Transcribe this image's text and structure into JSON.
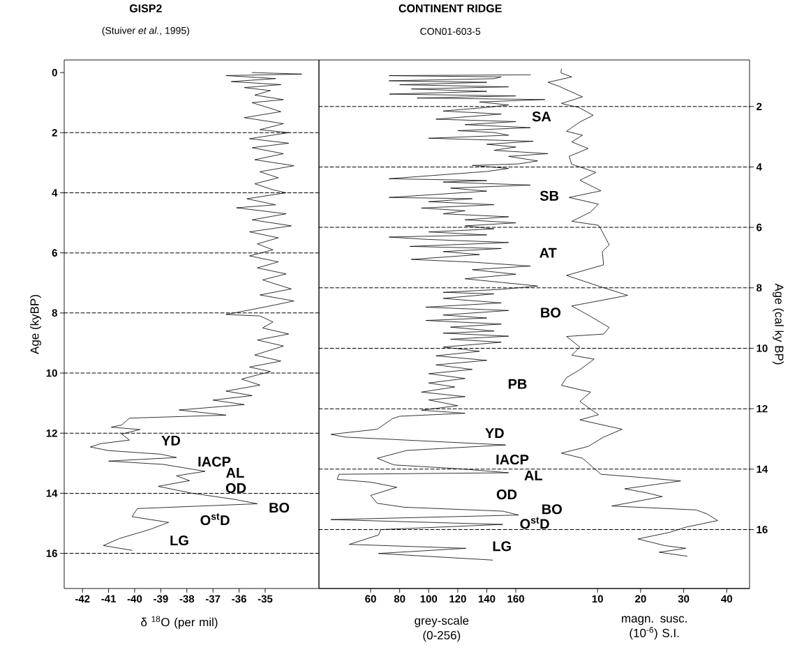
{
  "chart_data": [
    {
      "type": "line",
      "title": "GISP2",
      "subtitle": "(Stuiver *et al.*, 1995)",
      "xlabel": "δ $^{18}$O (per mil)",
      "ylabel": "Age (kyBP)",
      "xlim": [
        -42.7,
        -32.94
      ],
      "xticks": [
        -42,
        -41,
        -40,
        -39,
        -38,
        -37,
        -36,
        -35
      ],
      "ylim": [
        17.17,
        -0.42
      ],
      "yticks": [
        0,
        2,
        4,
        6,
        8,
        10,
        12,
        14,
        16
      ],
      "ref_lines": [
        {
          "axis": "y",
          "value": 2,
          "line_style": "dashed"
        },
        {
          "axis": "y",
          "value": 4,
          "line_style": "dashed"
        },
        {
          "axis": "y",
          "value": 6,
          "line_style": "dashed"
        },
        {
          "axis": "y",
          "value": 8,
          "line_style": "dashed"
        },
        {
          "axis": "y",
          "value": 10,
          "line_style": "dashed"
        },
        {
          "axis": "y",
          "value": 12,
          "line_style": "dashed"
        },
        {
          "axis": "y",
          "value": 14,
          "line_style": "dashed"
        },
        {
          "axis": "y",
          "value": 16,
          "line_style": "dashed"
        }
      ],
      "annotations": [
        "YD",
        "IACP",
        "AL",
        "OD",
        "BO",
        "O$^{st}$D",
        "LG"
      ],
      "series": [
        {
          "color": "#000000",
          "x": [
            -35.5,
            -33.6,
            -36.5,
            -34.6,
            -36.3,
            -34.4,
            -35.8,
            -34.8,
            -35.4,
            -34.3,
            -35.5,
            -34.4,
            -35.8,
            -34.3,
            -35.2,
            -34.1,
            -35.6,
            -34.1,
            -35.5,
            -34.3,
            -35.4,
            -33.9,
            -35.2,
            -34.5,
            -35.4,
            -34.7,
            -34.2,
            -35.7,
            -34.6,
            -36.1,
            -34.2,
            -35.5,
            -34.0,
            -35.6,
            -34.5,
            -35.3,
            -34.7,
            -35.6,
            -34.5,
            -35.3,
            -34.2,
            -35.1,
            -34.0,
            -35.2,
            -33.9,
            -35.0,
            -36.5,
            -35.2,
            -34.7,
            -35.1,
            -34.1,
            -35.3,
            -34.3,
            -35.4,
            -34.4,
            -35.6,
            -34.8,
            -35.9,
            -35.2,
            -36.5,
            -35.5,
            -37.0,
            -35.8,
            -38.3,
            -36.5,
            -40.2,
            -40.5,
            -40.9,
            -39.8,
            -40.5,
            -40.2,
            -41.3,
            -41.7,
            -41.0,
            -39.0,
            -38.4,
            -41.0,
            -38.9,
            -37.3,
            -38.4,
            -37.9,
            -39.1,
            -37.8,
            -36.2,
            -35.3,
            -39.9,
            -40.1,
            -38.7,
            -39.4,
            -40.6,
            -41.2,
            -40.1
          ],
          "values": [
            0.0,
            0.05,
            0.1,
            0.2,
            0.3,
            0.4,
            0.5,
            0.6,
            0.75,
            0.9,
            1.0,
            1.3,
            1.5,
            1.7,
            1.9,
            2.0,
            2.2,
            2.35,
            2.5,
            2.7,
            2.9,
            3.1,
            3.3,
            3.5,
            3.7,
            3.9,
            4.0,
            4.2,
            4.4,
            4.5,
            4.7,
            4.9,
            5.1,
            5.3,
            5.5,
            5.7,
            5.9,
            6.1,
            6.3,
            6.5,
            6.7,
            6.9,
            7.2,
            7.4,
            7.6,
            7.8,
            8.05,
            8.1,
            8.3,
            8.5,
            8.7,
            8.9,
            9.1,
            9.4,
            9.6,
            9.8,
            9.95,
            10.2,
            10.4,
            10.6,
            10.75,
            10.9,
            11.05,
            11.23,
            11.4,
            11.5,
            11.73,
            11.8,
            11.88,
            12.03,
            12.23,
            12.35,
            12.46,
            12.58,
            12.7,
            12.81,
            12.93,
            13.04,
            13.27,
            13.42,
            13.58,
            13.77,
            14.0,
            14.2,
            14.35,
            14.51,
            14.78,
            14.97,
            15.2,
            15.51,
            15.74,
            15.9
          ]
        }
      ]
    },
    {
      "type": "line",
      "title": "CONTINENT RIDGE",
      "subtitle": "CON01-603-5",
      "xlabel": "grey-scale (0-256)",
      "x2label": "magn. susc. (10$^{-6}$) S.I.",
      "ylabel": "Age (cal ky BP)",
      "xlim": [
        24.4,
        321
      ],
      "xticks": [
        60,
        80,
        100,
        120,
        140,
        160
      ],
      "x2lim": [
        -54.7,
        45.3
      ],
      "x2ticks": [
        10,
        20,
        30,
        40
      ],
      "ylim": [
        17.95,
        0.46
      ],
      "yticks": [
        2,
        4,
        6,
        8,
        10,
        12,
        14,
        16
      ],
      "ref_lines": [
        {
          "axis": "y",
          "value": 2,
          "line_style": "dashed"
        },
        {
          "axis": "y",
          "value": 4,
          "line_style": "dashed"
        },
        {
          "axis": "y",
          "value": 6,
          "line_style": "dashed"
        },
        {
          "axis": "y",
          "value": 8,
          "line_style": "dashed"
        },
        {
          "axis": "y",
          "value": 10,
          "line_style": "dashed"
        },
        {
          "axis": "y",
          "value": 12,
          "line_style": "dashed"
        },
        {
          "axis": "y",
          "value": 14,
          "line_style": "dashed"
        },
        {
          "axis": "y",
          "value": 16,
          "line_style": "dashed"
        }
      ],
      "annotations": [
        "SA",
        "SB",
        "AT",
        "BO",
        "PB",
        "YD",
        "IACP",
        "AL",
        "OD",
        "BO",
        "O$^{st}$D",
        "LG"
      ],
      "series": [
        {
          "color": "#000000",
          "x": [
            170,
            72.7,
            150,
            145,
            72.7,
            140,
            80,
            155,
            88,
            140,
            73,
            160,
            92,
            180,
            135,
            155,
            140,
            110,
            150,
            105,
            160,
            125,
            170,
            120,
            145,
            155,
            100,
            172,
            140,
            160,
            145,
            182,
            155,
            175,
            162,
            130,
            155,
            140,
            72.7,
            140,
            110,
            170,
            115,
            140,
            72.7,
            130,
            100,
            145,
            95,
            125,
            110,
            155,
            125,
            160,
            125,
            145,
            100,
            140,
            72.7,
            100,
            155,
            87,
            150,
            110,
            135,
            88,
            130,
            170,
            130,
            160,
            125,
            175,
            150,
            110,
            145,
            110,
            150,
            98,
            155,
            110,
            140,
            98,
            150,
            115,
            145,
            110,
            155,
            115,
            150,
            110,
            135,
            105,
            140,
            105,
            130,
            100,
            125,
            100,
            118,
            95,
            125,
            100,
            120,
            95,
            125,
            80,
            75,
            64.5,
            32.6,
            42.6,
            153,
            85,
            64.5,
            76,
            122,
            155,
            38.1,
            37,
            60,
            78,
            60,
            64.5,
            83,
            151,
            162,
            32.6,
            151,
            67,
            65.4,
            45.3,
            125.6,
            65.4,
            144
          ],
          "values": [
            0.95,
            0.98,
            1.02,
            1.08,
            1.15,
            1.2,
            1.28,
            1.35,
            1.42,
            1.5,
            1.59,
            1.65,
            1.72,
            1.77,
            1.85,
            1.95,
            2.03,
            2.15,
            2.25,
            2.42,
            2.5,
            2.6,
            2.7,
            2.8,
            2.86,
            2.95,
            3.05,
            3.15,
            3.25,
            3.34,
            3.45,
            3.56,
            3.65,
            3.8,
            3.9,
            3.95,
            4.05,
            4.15,
            4.39,
            4.45,
            4.5,
            4.6,
            4.7,
            4.8,
            5.01,
            5.05,
            5.15,
            5.25,
            5.36,
            5.45,
            5.55,
            5.65,
            5.75,
            5.85,
            5.95,
            6.05,
            6.15,
            6.25,
            6.32,
            6.4,
            6.5,
            6.63,
            6.7,
            6.8,
            6.9,
            7.06,
            7.15,
            7.28,
            7.4,
            7.55,
            7.7,
            7.94,
            8.05,
            8.15,
            8.2,
            8.35,
            8.5,
            8.64,
            8.75,
            8.9,
            9.0,
            9.08,
            9.2,
            9.3,
            9.43,
            9.5,
            9.6,
            9.7,
            9.8,
            9.96,
            10.1,
            10.25,
            10.4,
            10.55,
            10.7,
            10.84,
            11.0,
            11.15,
            11.28,
            11.45,
            11.6,
            11.71,
            11.9,
            12.05,
            12.15,
            12.25,
            12.33,
            12.68,
            12.85,
            12.94,
            13.2,
            13.38,
            13.64,
            13.86,
            13.99,
            14.12,
            14.17,
            14.34,
            14.43,
            14.6,
            14.87,
            15.13,
            15.26,
            15.39,
            15.52,
            15.67,
            15.83,
            16.0,
            16.18,
            16.49,
            16.62,
            16.79,
            17.01
          ]
        },
        {
          "color": "#000000",
          "axis": "x2",
          "x": [
            1.6,
            1.5,
            4.0,
            -1.5,
            1.0,
            6.5,
            1.6,
            5.6,
            9.0,
            5.9,
            2.8,
            6.5,
            4.0,
            7.8,
            3.4,
            4.0,
            9.6,
            5.9,
            10.8,
            3.4,
            10.2,
            8.4,
            4.0,
            10.2,
            10.8,
            12.7,
            11.1,
            11.4,
            2.8,
            10.2,
            17.0,
            4.0,
            8.4,
            12.7,
            11.4,
            2.8,
            5.9,
            4.0,
            9.2,
            5.9,
            2.8,
            1.6,
            8.4,
            5.9,
            10.2,
            5.9,
            15.7,
            11.4,
            7.8,
            1.6,
            6.5,
            9.0,
            10.8,
            18.8,
            29.3,
            16.3,
            21.3,
            25.0,
            13.3,
            32.9,
            35.4,
            37.9,
            30.5,
            26.8,
            19.4,
            25.6,
            30.5,
            24.3,
            30.8
          ],
          "values": [
            0.76,
            0.89,
            1.02,
            1.2,
            1.33,
            1.68,
            1.9,
            2.03,
            2.29,
            2.51,
            2.82,
            2.95,
            3.17,
            3.39,
            3.65,
            3.91,
            4.18,
            4.44,
            4.79,
            5.01,
            5.23,
            5.49,
            5.8,
            5.93,
            6.06,
            6.58,
            6.8,
            7.24,
            7.59,
            7.94,
            8.25,
            8.6,
            8.95,
            9.31,
            9.53,
            9.61,
            9.96,
            10.23,
            10.36,
            10.71,
            10.97,
            11.23,
            11.45,
            11.76,
            12.2,
            12.37,
            12.68,
            12.94,
            13.25,
            13.47,
            13.64,
            13.95,
            14.17,
            14.26,
            14.39,
            14.65,
            14.78,
            14.91,
            15.22,
            15.35,
            15.48,
            15.7,
            15.92,
            16.09,
            16.31,
            16.53,
            16.62,
            16.75,
            16.88
          ]
        }
      ]
    }
  ]
}
